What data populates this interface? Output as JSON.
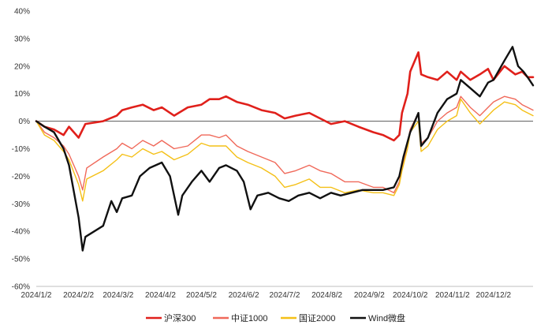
{
  "chart_data": {
    "type": "line",
    "title": "",
    "xlabel": "",
    "ylabel": "",
    "ylim": [
      -60,
      40
    ],
    "y_ticks": [
      40,
      30,
      20,
      10,
      0,
      -10,
      -20,
      -30,
      -40,
      -50,
      -60
    ],
    "y_tick_labels": [
      "40%",
      "30%",
      "20%",
      "10%",
      "0%",
      "-10%",
      "-20%",
      "-30%",
      "-40%",
      "-50%",
      "-60%"
    ],
    "x_tick_labels": [
      "2024/1/2",
      "2024/2/2",
      "2024/3/2",
      "2024/4/2",
      "2024/5/2",
      "2024/6/2",
      "2024/7/2",
      "2024/8/2",
      "2024/9/2",
      "2024/10/2",
      "2024/11/2",
      "2024/12/2"
    ],
    "x_ticks": [
      "2024-01-02",
      "2024-02-02",
      "2024-03-02",
      "2024-04-02",
      "2024-05-02",
      "2024-06-02",
      "2024-07-02",
      "2024-08-02",
      "2024-09-02",
      "2024-10-02",
      "2024-11-02",
      "2024-12-02"
    ],
    "xlim": [
      "2024-01-02",
      "2024-12-31"
    ],
    "zero_line": true,
    "legend_position": "bottom",
    "series": [
      {
        "name": "沪深300",
        "color": "#e0201b",
        "width": 2.6,
        "points": [
          [
            "2024-01-02",
            0
          ],
          [
            "2024-01-08",
            -2
          ],
          [
            "2024-01-15",
            -3
          ],
          [
            "2024-01-22",
            -5
          ],
          [
            "2024-01-26",
            -2
          ],
          [
            "2024-02-02",
            -6
          ],
          [
            "2024-02-07",
            -1
          ],
          [
            "2024-02-20",
            0
          ],
          [
            "2024-03-01",
            2
          ],
          [
            "2024-03-05",
            4
          ],
          [
            "2024-03-12",
            5
          ],
          [
            "2024-03-20",
            6
          ],
          [
            "2024-03-28",
            4
          ],
          [
            "2024-04-03",
            5
          ],
          [
            "2024-04-12",
            2
          ],
          [
            "2024-04-22",
            5
          ],
          [
            "2024-05-02",
            6
          ],
          [
            "2024-05-08",
            8
          ],
          [
            "2024-05-15",
            8
          ],
          [
            "2024-05-20",
            9
          ],
          [
            "2024-05-28",
            7
          ],
          [
            "2024-06-05",
            6
          ],
          [
            "2024-06-15",
            4
          ],
          [
            "2024-06-25",
            3
          ],
          [
            "2024-07-02",
            1
          ],
          [
            "2024-07-10",
            2
          ],
          [
            "2024-07-20",
            3
          ],
          [
            "2024-07-28",
            1
          ],
          [
            "2024-08-05",
            -1
          ],
          [
            "2024-08-15",
            0
          ],
          [
            "2024-08-25",
            -2
          ],
          [
            "2024-09-05",
            -4
          ],
          [
            "2024-09-12",
            -5
          ],
          [
            "2024-09-20",
            -7
          ],
          [
            "2024-09-24",
            -5
          ],
          [
            "2024-09-26",
            3
          ],
          [
            "2024-09-30",
            10
          ],
          [
            "2024-10-02",
            18
          ],
          [
            "2024-10-08",
            25
          ],
          [
            "2024-10-10",
            17
          ],
          [
            "2024-10-15",
            16
          ],
          [
            "2024-10-22",
            15
          ],
          [
            "2024-10-29",
            18
          ],
          [
            "2024-11-05",
            15
          ],
          [
            "2024-11-08",
            18
          ],
          [
            "2024-11-15",
            15
          ],
          [
            "2024-11-22",
            17
          ],
          [
            "2024-11-28",
            19
          ],
          [
            "2024-12-02",
            15
          ],
          [
            "2024-12-10",
            20
          ],
          [
            "2024-12-18",
            17
          ],
          [
            "2024-12-23",
            18
          ],
          [
            "2024-12-27",
            16
          ],
          [
            "2024-12-31",
            16
          ]
        ]
      },
      {
        "name": "中证1000",
        "color": "#f0695a",
        "width": 1.4,
        "points": [
          [
            "2024-01-02",
            0
          ],
          [
            "2024-01-08",
            -4
          ],
          [
            "2024-01-15",
            -6
          ],
          [
            "2024-01-22",
            -9
          ],
          [
            "2024-01-26",
            -12
          ],
          [
            "2024-02-02",
            -20
          ],
          [
            "2024-02-05",
            -25
          ],
          [
            "2024-02-08",
            -17
          ],
          [
            "2024-02-20",
            -13
          ],
          [
            "2024-03-01",
            -10
          ],
          [
            "2024-03-05",
            -8
          ],
          [
            "2024-03-12",
            -10
          ],
          [
            "2024-03-20",
            -7
          ],
          [
            "2024-03-28",
            -9
          ],
          [
            "2024-04-03",
            -7
          ],
          [
            "2024-04-12",
            -10
          ],
          [
            "2024-04-22",
            -9
          ],
          [
            "2024-05-02",
            -5
          ],
          [
            "2024-05-08",
            -5
          ],
          [
            "2024-05-15",
            -6
          ],
          [
            "2024-05-20",
            -5
          ],
          [
            "2024-05-28",
            -9
          ],
          [
            "2024-06-05",
            -11
          ],
          [
            "2024-06-15",
            -13
          ],
          [
            "2024-06-25",
            -15
          ],
          [
            "2024-07-02",
            -19
          ],
          [
            "2024-07-10",
            -18
          ],
          [
            "2024-07-20",
            -16
          ],
          [
            "2024-07-28",
            -18
          ],
          [
            "2024-08-05",
            -19
          ],
          [
            "2024-08-15",
            -22
          ],
          [
            "2024-08-25",
            -22
          ],
          [
            "2024-09-05",
            -24
          ],
          [
            "2024-09-12",
            -24
          ],
          [
            "2024-09-20",
            -26
          ],
          [
            "2024-09-24",
            -22
          ],
          [
            "2024-09-26",
            -17
          ],
          [
            "2024-09-30",
            -8
          ],
          [
            "2024-10-02",
            -3
          ],
          [
            "2024-10-08",
            3
          ],
          [
            "2024-10-10",
            -8
          ],
          [
            "2024-10-15",
            -6
          ],
          [
            "2024-10-22",
            0
          ],
          [
            "2024-10-29",
            3
          ],
          [
            "2024-11-05",
            5
          ],
          [
            "2024-11-08",
            9
          ],
          [
            "2024-11-15",
            5
          ],
          [
            "2024-11-22",
            2
          ],
          [
            "2024-11-28",
            5
          ],
          [
            "2024-12-02",
            7
          ],
          [
            "2024-12-10",
            9
          ],
          [
            "2024-12-18",
            8
          ],
          [
            "2024-12-23",
            6
          ],
          [
            "2024-12-27",
            5
          ],
          [
            "2024-12-31",
            4
          ]
        ]
      },
      {
        "name": "国证2000",
        "color": "#f4c017",
        "width": 1.4,
        "points": [
          [
            "2024-01-02",
            0
          ],
          [
            "2024-01-08",
            -5
          ],
          [
            "2024-01-15",
            -7
          ],
          [
            "2024-01-22",
            -11
          ],
          [
            "2024-01-26",
            -14
          ],
          [
            "2024-02-02",
            -23
          ],
          [
            "2024-02-05",
            -29
          ],
          [
            "2024-02-08",
            -21
          ],
          [
            "2024-02-20",
            -18
          ],
          [
            "2024-03-01",
            -14
          ],
          [
            "2024-03-05",
            -12
          ],
          [
            "2024-03-12",
            -13
          ],
          [
            "2024-03-20",
            -10
          ],
          [
            "2024-03-28",
            -12
          ],
          [
            "2024-04-03",
            -11
          ],
          [
            "2024-04-12",
            -14
          ],
          [
            "2024-04-22",
            -12
          ],
          [
            "2024-05-02",
            -8
          ],
          [
            "2024-05-08",
            -9
          ],
          [
            "2024-05-15",
            -9
          ],
          [
            "2024-05-20",
            -9
          ],
          [
            "2024-05-28",
            -13
          ],
          [
            "2024-06-05",
            -15
          ],
          [
            "2024-06-15",
            -17
          ],
          [
            "2024-06-25",
            -20
          ],
          [
            "2024-07-02",
            -24
          ],
          [
            "2024-07-10",
            -23
          ],
          [
            "2024-07-20",
            -21
          ],
          [
            "2024-07-28",
            -24
          ],
          [
            "2024-08-05",
            -24
          ],
          [
            "2024-08-15",
            -26
          ],
          [
            "2024-08-25",
            -25
          ],
          [
            "2024-09-05",
            -26
          ],
          [
            "2024-09-12",
            -26
          ],
          [
            "2024-09-20",
            -27
          ],
          [
            "2024-09-24",
            -23
          ],
          [
            "2024-09-26",
            -18
          ],
          [
            "2024-09-30",
            -10
          ],
          [
            "2024-10-02",
            -4
          ],
          [
            "2024-10-08",
            0
          ],
          [
            "2024-10-10",
            -11
          ],
          [
            "2024-10-15",
            -9
          ],
          [
            "2024-10-22",
            -3
          ],
          [
            "2024-10-29",
            0
          ],
          [
            "2024-11-05",
            2
          ],
          [
            "2024-11-08",
            8
          ],
          [
            "2024-11-15",
            3
          ],
          [
            "2024-11-22",
            -1
          ],
          [
            "2024-11-28",
            2
          ],
          [
            "2024-12-02",
            4
          ],
          [
            "2024-12-10",
            7
          ],
          [
            "2024-12-18",
            6
          ],
          [
            "2024-12-23",
            4
          ],
          [
            "2024-12-27",
            3
          ],
          [
            "2024-12-31",
            2
          ]
        ]
      },
      {
        "name": "Wind微盘",
        "color": "#111111",
        "width": 2.4,
        "points": [
          [
            "2024-01-02",
            0
          ],
          [
            "2024-01-08",
            -2
          ],
          [
            "2024-01-15",
            -4
          ],
          [
            "2024-01-22",
            -10
          ],
          [
            "2024-01-26",
            -16
          ],
          [
            "2024-02-02",
            -35
          ],
          [
            "2024-02-05",
            -47
          ],
          [
            "2024-02-07",
            -42
          ],
          [
            "2024-02-20",
            -38
          ],
          [
            "2024-02-26",
            -29
          ],
          [
            "2024-03-01",
            -33
          ],
          [
            "2024-03-05",
            -28
          ],
          [
            "2024-03-12",
            -27
          ],
          [
            "2024-03-18",
            -20
          ],
          [
            "2024-03-25",
            -17
          ],
          [
            "2024-04-03",
            -15
          ],
          [
            "2024-04-09",
            -20
          ],
          [
            "2024-04-15",
            -34
          ],
          [
            "2024-04-18",
            -27
          ],
          [
            "2024-04-25",
            -22
          ],
          [
            "2024-05-02",
            -18
          ],
          [
            "2024-05-08",
            -22
          ],
          [
            "2024-05-15",
            -17
          ],
          [
            "2024-05-20",
            -16
          ],
          [
            "2024-05-28",
            -18
          ],
          [
            "2024-06-02",
            -22
          ],
          [
            "2024-06-07",
            -32
          ],
          [
            "2024-06-12",
            -27
          ],
          [
            "2024-06-20",
            -26
          ],
          [
            "2024-06-28",
            -28
          ],
          [
            "2024-07-05",
            -29
          ],
          [
            "2024-07-12",
            -27
          ],
          [
            "2024-07-20",
            -26
          ],
          [
            "2024-07-28",
            -28
          ],
          [
            "2024-08-05",
            -26
          ],
          [
            "2024-08-12",
            -27
          ],
          [
            "2024-08-20",
            -26
          ],
          [
            "2024-08-28",
            -25
          ],
          [
            "2024-09-05",
            -25
          ],
          [
            "2024-09-12",
            -25
          ],
          [
            "2024-09-20",
            -24
          ],
          [
            "2024-09-24",
            -20
          ],
          [
            "2024-09-27",
            -13
          ],
          [
            "2024-10-02",
            -4
          ],
          [
            "2024-10-08",
            3
          ],
          [
            "2024-10-10",
            -9
          ],
          [
            "2024-10-15",
            -6
          ],
          [
            "2024-10-22",
            3
          ],
          [
            "2024-10-29",
            8
          ],
          [
            "2024-11-05",
            10
          ],
          [
            "2024-11-08",
            15
          ],
          [
            "2024-11-15",
            12
          ],
          [
            "2024-11-22",
            9
          ],
          [
            "2024-11-28",
            14
          ],
          [
            "2024-12-02",
            15
          ],
          [
            "2024-12-10",
            22
          ],
          [
            "2024-12-16",
            27
          ],
          [
            "2024-12-20",
            20
          ],
          [
            "2024-12-24",
            18
          ],
          [
            "2024-12-27",
            16
          ],
          [
            "2024-12-31",
            13
          ]
        ]
      }
    ]
  }
}
